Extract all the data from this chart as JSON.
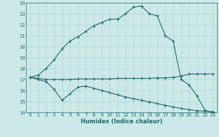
{
  "xlabel": "Humidex (Indice chaleur)",
  "bg_color": "#cde8e8",
  "grid_color": "#add4d4",
  "line_color": "#1a6b6b",
  "xlim": [
    -0.5,
    23.5
  ],
  "ylim": [
    14,
    24
  ],
  "yticks": [
    14,
    15,
    16,
    17,
    18,
    19,
    20,
    21,
    22,
    23,
    24
  ],
  "xticks": [
    0,
    1,
    2,
    3,
    4,
    5,
    6,
    7,
    8,
    9,
    10,
    11,
    12,
    13,
    14,
    15,
    16,
    17,
    18,
    19,
    20,
    21,
    22,
    23
  ],
  "curve1_x": [
    0,
    1,
    2,
    3,
    4,
    5,
    6,
    7,
    8,
    9,
    10,
    11,
    12,
    13,
    14,
    15,
    16,
    17,
    18,
    19,
    20,
    21,
    22,
    23
  ],
  "curve1_y": [
    17.2,
    17.4,
    18.0,
    18.8,
    19.8,
    20.5,
    20.9,
    21.4,
    21.9,
    22.2,
    22.5,
    22.5,
    23.0,
    23.6,
    23.7,
    23.0,
    22.8,
    21.0,
    20.5,
    17.0,
    16.5,
    15.5,
    14.2,
    14.0
  ],
  "curve2_x": [
    0,
    1,
    2,
    3,
    4,
    5,
    6,
    7,
    8,
    9,
    10,
    11,
    12,
    13,
    14,
    15,
    16,
    17,
    18,
    19,
    20,
    21,
    22,
    23
  ],
  "curve2_y": [
    17.2,
    17.1,
    17.0,
    17.0,
    17.0,
    17.0,
    17.05,
    17.05,
    17.05,
    17.05,
    17.05,
    17.1,
    17.1,
    17.1,
    17.1,
    17.1,
    17.15,
    17.15,
    17.2,
    17.3,
    17.5,
    17.5,
    17.5,
    17.5
  ],
  "curve3_x": [
    0,
    1,
    2,
    3,
    4,
    5,
    6,
    7,
    8,
    9,
    10,
    11,
    12,
    13,
    14,
    15,
    16,
    17,
    18,
    19,
    20,
    21,
    22,
    23
  ],
  "curve3_y": [
    17.2,
    17.0,
    16.8,
    16.1,
    15.1,
    15.7,
    16.3,
    16.4,
    16.2,
    16.0,
    15.8,
    15.6,
    15.4,
    15.25,
    15.1,
    14.95,
    14.8,
    14.65,
    14.5,
    14.35,
    14.25,
    14.15,
    14.1,
    14.05
  ]
}
